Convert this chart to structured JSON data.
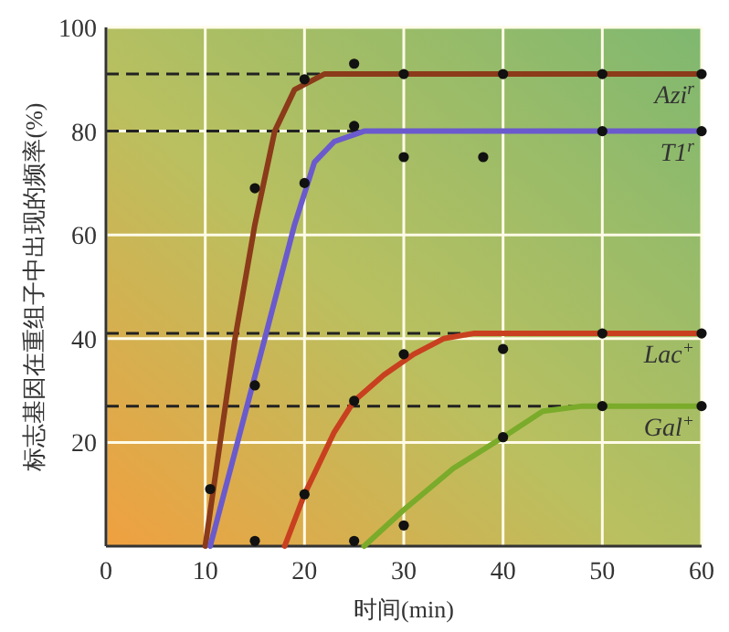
{
  "chart_data": {
    "type": "line",
    "xlabel": "时间(min)",
    "ylabel": "标志基因在重组子中出现的频率(%)",
    "xlim": [
      0,
      60
    ],
    "ylim": [
      0,
      100
    ],
    "xticks": [
      0,
      10,
      20,
      30,
      40,
      50,
      60
    ],
    "yticks": [
      20,
      40,
      60,
      80,
      100
    ],
    "grid": true,
    "series": [
      {
        "name": "Azi$^{r}$",
        "color": "#8b3a1a",
        "type": "line",
        "x": [
          10,
          13,
          15,
          17,
          19,
          22,
          60
        ],
        "values": [
          0,
          40,
          62,
          80,
          88,
          91,
          91
        ]
      },
      {
        "name": "T1$^{r}$",
        "color": "#6a5acd",
        "type": "line",
        "x": [
          10.5,
          16,
          19,
          21,
          23,
          26,
          60
        ],
        "values": [
          0,
          40,
          62,
          74,
          78,
          80,
          80
        ]
      },
      {
        "name": "Lac$^{+}$",
        "color": "#c8401f",
        "type": "line",
        "x": [
          18,
          20,
          23,
          25,
          28,
          31,
          34,
          37,
          60
        ],
        "values": [
          0,
          10,
          22,
          28,
          33,
          37,
          40,
          41,
          41
        ]
      },
      {
        "name": "Gal$^{+}$",
        "color": "#7aab2a",
        "type": "line",
        "x": [
          26,
          30,
          35,
          40,
          44,
          48,
          60
        ],
        "values": [
          0,
          7,
          15,
          21,
          26,
          27,
          27
        ]
      },
      {
        "color": "#111111",
        "type": "scatter",
        "marker": "circle",
        "x": [
          10.5,
          15,
          20,
          25,
          30,
          40,
          50,
          60,
          15,
          20,
          25,
          30,
          38,
          50,
          60,
          15,
          20,
          25,
          30,
          40,
          50,
          60,
          25,
          30,
          40,
          50,
          60
        ],
        "values": [
          11,
          69,
          90,
          93,
          91,
          91,
          91,
          91,
          31,
          70,
          81,
          75,
          75,
          80,
          80,
          1,
          10,
          28,
          37,
          38,
          41,
          41,
          1,
          4,
          21,
          27,
          27
        ]
      }
    ],
    "ref_lines": [
      {
        "axis": "y",
        "value": 91,
        "line_style": "dashed",
        "color": "#222222"
      },
      {
        "axis": "y",
        "value": 80,
        "line_style": "dashed",
        "color": "#222222"
      },
      {
        "axis": "y",
        "value": 41,
        "line_style": "dashed",
        "color": "#222222"
      },
      {
        "axis": "y",
        "value": 27,
        "line_style": "dashed",
        "color": "#222222"
      }
    ]
  }
}
